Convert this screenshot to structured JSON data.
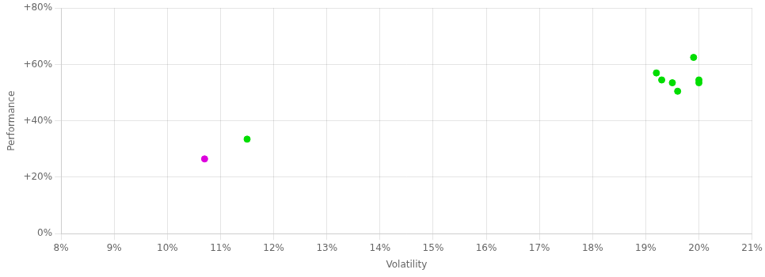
{
  "chart_data": {
    "type": "scatter",
    "xlabel": "Volatility",
    "ylabel": "Performance",
    "xlim": [
      0.08,
      0.21
    ],
    "ylim": [
      0.0,
      0.8
    ],
    "xticks": [
      {
        "value": 0.08,
        "label": "8%"
      },
      {
        "value": 0.09,
        "label": "9%"
      },
      {
        "value": 0.1,
        "label": "10%"
      },
      {
        "value": 0.11,
        "label": "11%"
      },
      {
        "value": 0.12,
        "label": "12%"
      },
      {
        "value": 0.13,
        "label": "13%"
      },
      {
        "value": 0.14,
        "label": "14%"
      },
      {
        "value": 0.15,
        "label": "15%"
      },
      {
        "value": 0.16,
        "label": "16%"
      },
      {
        "value": 0.17,
        "label": "17%"
      },
      {
        "value": 0.18,
        "label": "18%"
      },
      {
        "value": 0.19,
        "label": "19%"
      },
      {
        "value": 0.2,
        "label": "20%"
      },
      {
        "value": 0.21,
        "label": "21%"
      }
    ],
    "yticks": [
      {
        "value": 0.0,
        "label": "0%"
      },
      {
        "value": 0.2,
        "label": "+20%"
      },
      {
        "value": 0.4,
        "label": "+40%"
      },
      {
        "value": 0.6,
        "label": "+60%"
      },
      {
        "value": 0.8,
        "label": "+80%"
      }
    ],
    "grid": true,
    "series": [
      {
        "color": "#00dd00",
        "x": [
          0.115,
          0.192,
          0.193,
          0.195,
          0.196,
          0.199,
          0.2,
          0.2
        ],
        "values": [
          0.335,
          0.57,
          0.545,
          0.535,
          0.505,
          0.625,
          0.545,
          0.535
        ]
      },
      {
        "color": "#dd00dd",
        "x": [
          0.107
        ],
        "values": [
          0.265
        ]
      }
    ]
  }
}
